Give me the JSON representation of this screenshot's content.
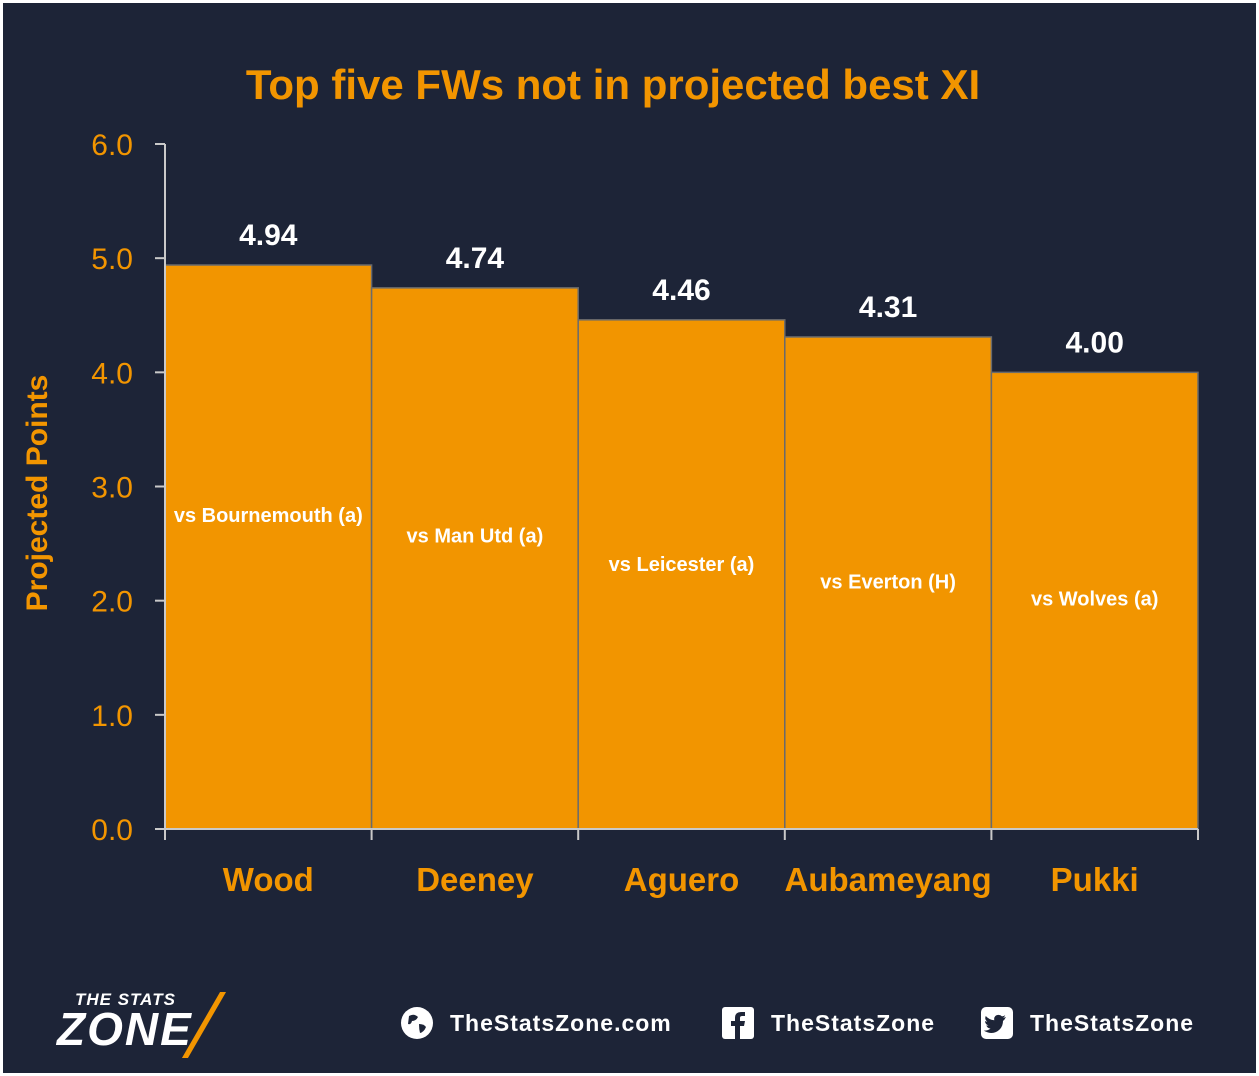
{
  "chart_data": {
    "type": "bar",
    "title": "Top five FWs not in projected best XI",
    "ylabel": "Projected Points",
    "xlabel": "",
    "ylim": [
      0,
      6
    ],
    "yticks": [
      "0.0",
      "1.0",
      "2.0",
      "3.0",
      "4.0",
      "5.0",
      "6.0"
    ],
    "categories": [
      "Wood",
      "Deeney",
      "Aguero",
      "Aubameyang",
      "Pukki"
    ],
    "values": [
      4.94,
      4.74,
      4.46,
      4.31,
      4.0
    ],
    "value_labels": [
      "4.94",
      "4.74",
      "4.46",
      "4.31",
      "4.00"
    ],
    "annotations": [
      "vs Bournemouth (a)",
      "vs Man Utd (a)",
      "vs Leicester (a)",
      "vs Everton (H)",
      "vs Wolves (a)"
    ],
    "annotation_y": [
      2.75,
      2.57,
      2.32,
      2.17,
      2.02
    ],
    "grid": false,
    "legend": "none",
    "colors": {
      "bar": "#f29500",
      "background": "#1d2437",
      "text_accent": "#f29500",
      "value_text": "#ffffff"
    }
  },
  "footer": {
    "logo_top": "THE STATS",
    "logo_big": "ZONE",
    "links": [
      {
        "icon": "globe-icon",
        "label": "TheStatsZone.com"
      },
      {
        "icon": "facebook-icon",
        "label": "TheStatsZone"
      },
      {
        "icon": "twitter-icon",
        "label": "TheStatsZone"
      }
    ]
  }
}
